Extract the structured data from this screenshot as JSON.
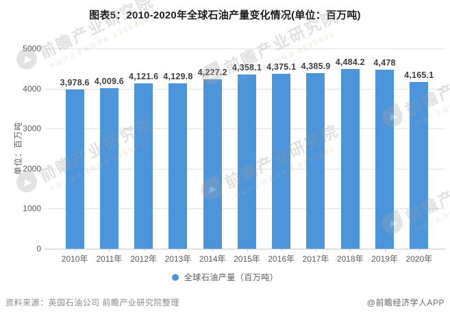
{
  "chart_data": {
    "type": "bar",
    "title": "图表5：2010-2020年全球石油产量变化情况(单位：百万吨)",
    "categories": [
      "2010年",
      "2011年",
      "2012年",
      "2013年",
      "2014年",
      "2015年",
      "2016年",
      "2017年",
      "2018年",
      "2019年",
      "2020年"
    ],
    "values": [
      3978.6,
      4009.6,
      4121.6,
      4129.8,
      4227.2,
      4358.1,
      4375.1,
      4385.9,
      4484.2,
      4478,
      4165.1
    ],
    "value_labels": [
      "3,978.6",
      "4,009.6",
      "4,121.6",
      "4,129.8",
      "4,227.2",
      "4,358.1",
      "4,375.1",
      "4,385.9",
      "4,484.2",
      "4,478",
      "4,165.1"
    ],
    "xlabel": "",
    "ylabel": "单位：百万吨",
    "ylim": [
      0,
      5000
    ],
    "yticks": [
      0,
      1000,
      2000,
      3000,
      4000,
      5000
    ],
    "grid": true,
    "legend_position": "bottom",
    "legend": {
      "label": "全球石油产量（百万吨）"
    },
    "bar_color": "#4C95DB"
  },
  "footer": {
    "source": "资料来源：英国石油公司 前瞻产业研究院整理",
    "credit": "@前瞻经济学人APP"
  },
  "watermark": {
    "brand": "前瞻产业研究院",
    "tagline": "中国产业咨询领导者",
    "digits": "8395991"
  },
  "colors": {
    "bar": "#4C95DB",
    "gridline": "#e2e2e2",
    "axis": "#c6c6c6",
    "tick_text": "#595959",
    "value_text": "#3d3d3d",
    "source_text": "#8c8c8c"
  }
}
